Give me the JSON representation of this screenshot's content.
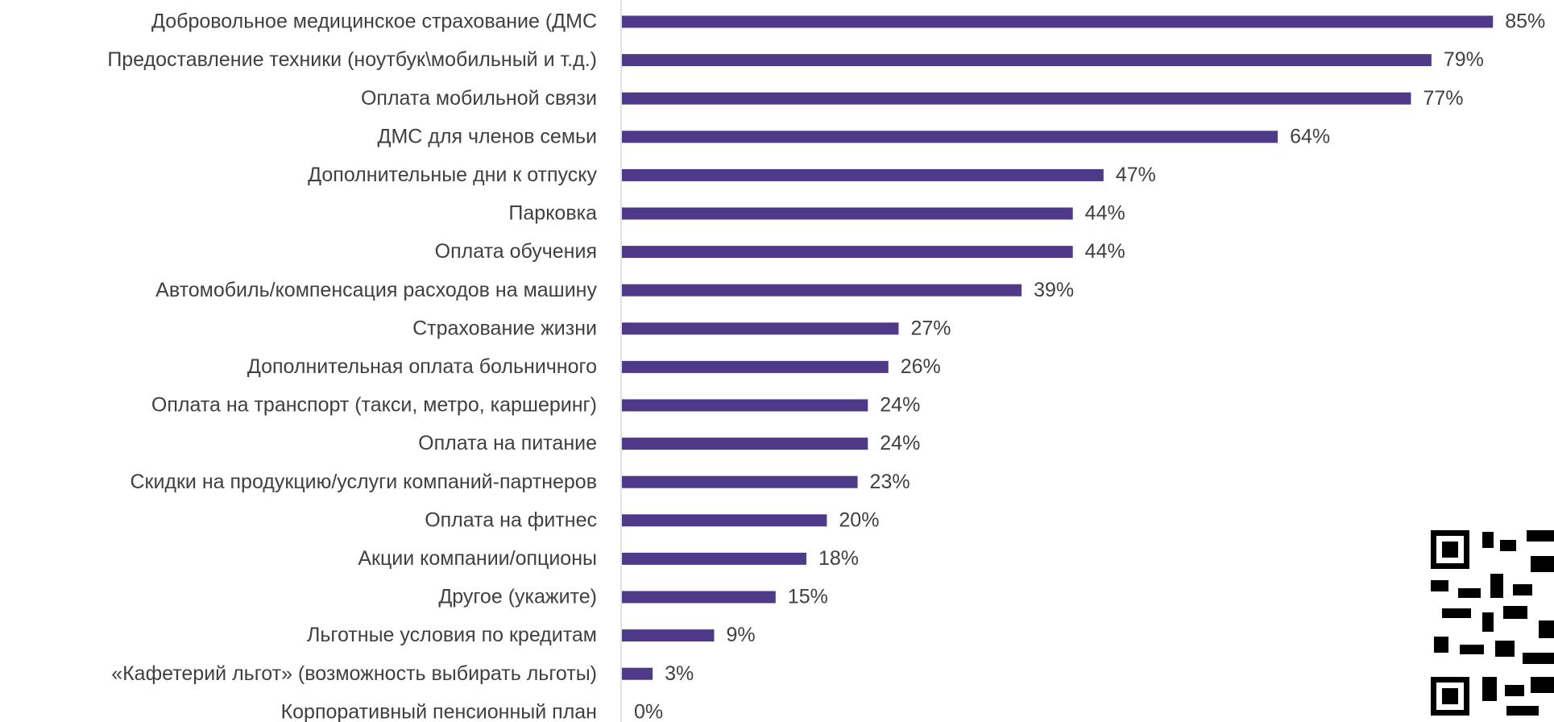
{
  "chart_data": {
    "type": "bar",
    "orientation": "horizontal",
    "color": "#4e3a88",
    "categories": [
      "Добровольное медицинское страхование (ДМС",
      "Предоставление техники (ноутбук\\мобильный и т.д.)",
      "Оплата мобильной связи",
      "ДМС для членов семьи",
      "Дополнительные дни к отпуску",
      "Парковка",
      "Оплата обучения",
      "Автомобиль/компенсация расходов на машину",
      "Страхование жизни",
      "Дополнительная оплата больничного",
      "Оплата на транспорт (такси, метро, каршеринг)",
      "Оплата на питание",
      "Скидки на продукцию/услуги компаний-партнеров",
      "Оплата на фитнес",
      "Акции компании/опционы",
      "Другое (укажите)",
      "Льготные условия по кредитам",
      "«Кафетерий льгот» (возможность выбирать льготы)",
      "Корпоративный пенсионный план"
    ],
    "values": [
      85,
      79,
      77,
      64,
      47,
      44,
      44,
      39,
      27,
      26,
      24,
      24,
      23,
      20,
      18,
      15,
      9,
      3,
      0
    ],
    "value_labels": [
      "85%",
      "79%",
      "77%",
      "64%",
      "47%",
      "44%",
      "44%",
      "39%",
      "27%",
      "26%",
      "24%",
      "24%",
      "23%",
      "20%",
      "18%",
      "15%",
      "9%",
      "3%",
      "0%"
    ]
  }
}
